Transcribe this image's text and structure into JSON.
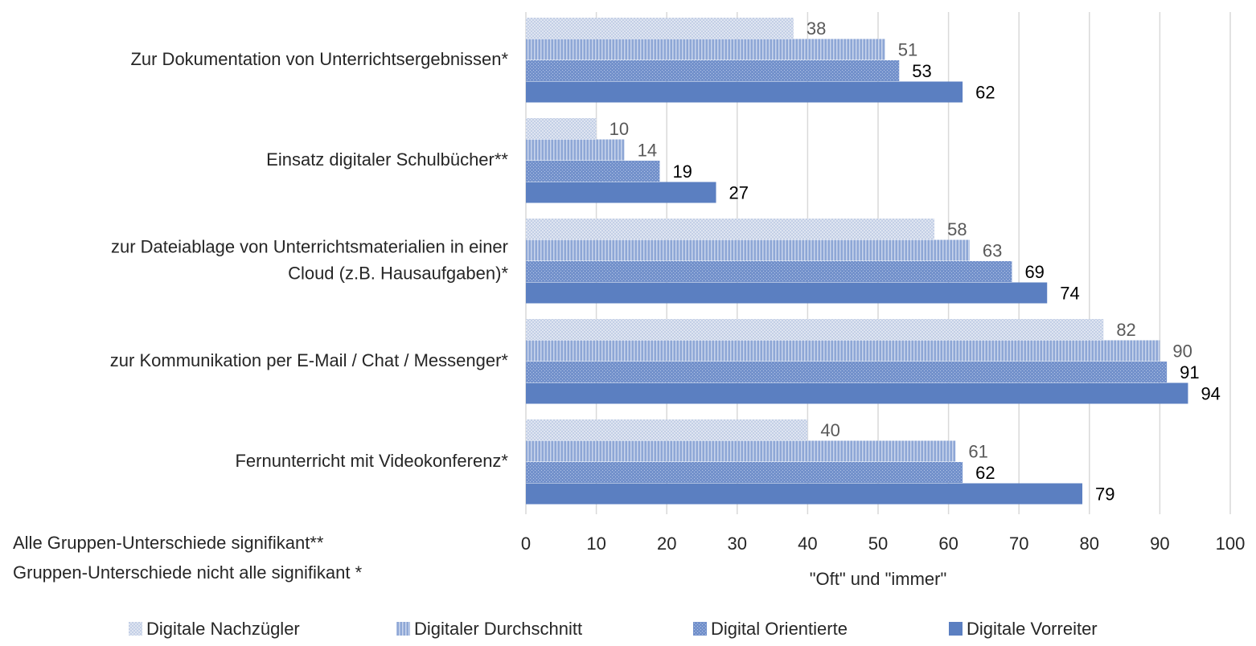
{
  "chart_data": {
    "type": "bar",
    "orientation": "horizontal",
    "categories": [
      "Zur Dokumentation von Unterrichtsergebnissen*",
      "Einsatz digitaler Schulbücher**",
      "zur Dateiablage von Unterrichtsmaterialien in einer\nCloud (z.B. Hausaufgaben)*",
      "zur Kommunikation per E-Mail / Chat / Messenger*",
      "Fernunterricht mit Videokonferenz*"
    ],
    "series": [
      {
        "name": "Digitale Nachzügler",
        "color": "#c3cfe6",
        "pattern": "checker",
        "values": [
          38,
          10,
          58,
          82,
          40
        ]
      },
      {
        "name": "Digitaler Durchschnitt",
        "color": "#8ea7d6",
        "pattern": "vertical",
        "values": [
          51,
          14,
          63,
          90,
          61
        ]
      },
      {
        "name": "Digital Orientierte",
        "color": "#7391cb",
        "pattern": "dots",
        "values": [
          53,
          19,
          69,
          91,
          62
        ]
      },
      {
        "name": "Digitale Vorreiter",
        "color": "#5b7fc1",
        "pattern": "solid",
        "values": [
          62,
          27,
          74,
          94,
          79
        ]
      }
    ],
    "xlabel": "\"Oft\" und \"immer\"",
    "xlim": [
      0,
      100
    ],
    "xticks": [
      0,
      10,
      20,
      30,
      40,
      50,
      60,
      70,
      80,
      90,
      100
    ],
    "grid": true,
    "legend": "bottom",
    "notes": [
      "Alle Gruppen-Unterschiede signifikant**",
      "Gruppen-Unterschiede nicht alle signifikant *"
    ]
  }
}
